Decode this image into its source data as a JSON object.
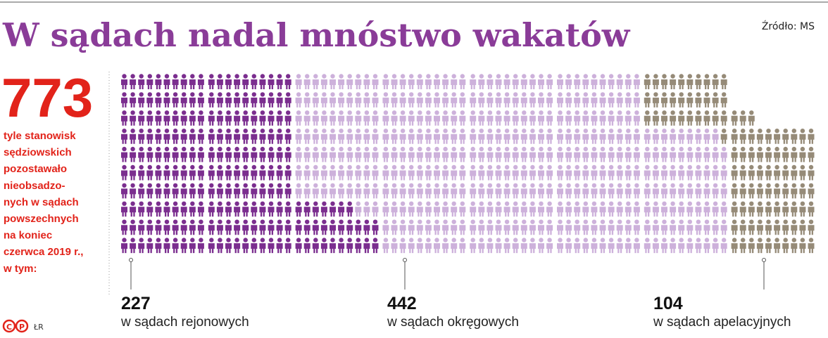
{
  "chart_data": {
    "type": "pictogram",
    "title": "W sądach nadal mnóstwo wakatów",
    "source": "Źródło: MS",
    "total": 773,
    "description": [
      "tyle stanowisk",
      "sędziowskich",
      "pozostawało",
      "nieobsadzo-",
      "nych w sądach",
      "powszechnych",
      "na koniec",
      "czerwca 2019 r.,",
      "w tym:"
    ],
    "categories": [
      "w sądach rejonowych",
      "w sądach okręgowych",
      "w sądach apelacyjnych"
    ],
    "values": [
      227,
      442,
      104
    ],
    "colors": [
      "#7b2e8f",
      "#cdb1db",
      "#968b78"
    ],
    "logo": [
      "C",
      "P"
    ],
    "credit": "ŁR"
  }
}
